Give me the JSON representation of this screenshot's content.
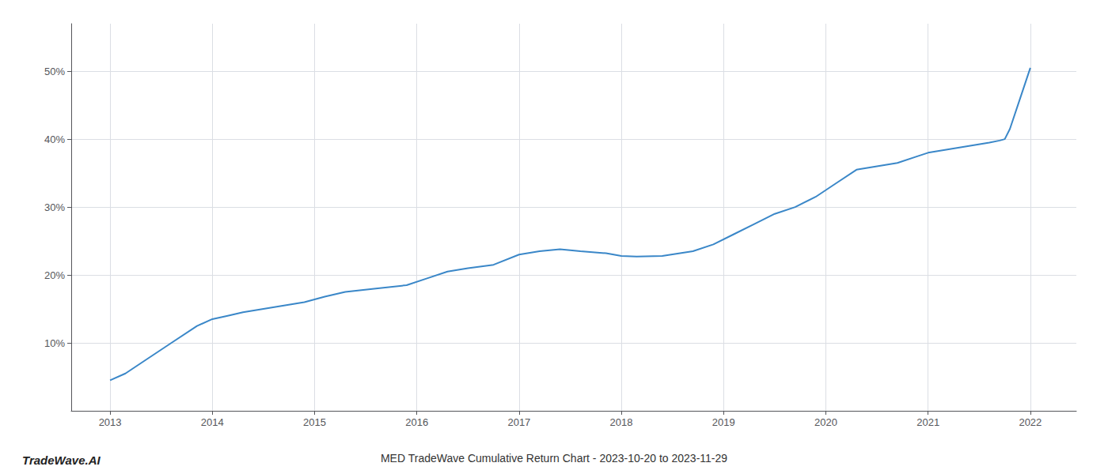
{
  "chart_data": {
    "type": "line",
    "title": "MED TradeWave Cumulative Return Chart - 2023-10-20 to 2023-11-29",
    "annotations": [
      "TradeWave.AI"
    ],
    "x": [
      2013.0,
      2013.15,
      2013.35,
      2013.6,
      2013.85,
      2014.0,
      2014.15,
      2014.3,
      2014.5,
      2014.7,
      2014.9,
      2015.1,
      2015.3,
      2015.6,
      2015.9,
      2016.1,
      2016.3,
      2016.5,
      2016.75,
      2017.0,
      2017.2,
      2017.4,
      2017.6,
      2017.85,
      2018.0,
      2018.15,
      2018.4,
      2018.7,
      2018.9,
      2019.1,
      2019.3,
      2019.5,
      2019.7,
      2019.9,
      2020.1,
      2020.3,
      2020.5,
      2020.7,
      2020.9,
      2021.0,
      2021.2,
      2021.4,
      2021.6,
      2021.7,
      2021.75,
      2021.8,
      2021.9,
      2022.0
    ],
    "values": [
      4.5,
      5.5,
      7.5,
      10.0,
      12.5,
      13.5,
      14.0,
      14.5,
      15.0,
      15.5,
      16.0,
      16.8,
      17.5,
      18.0,
      18.5,
      19.5,
      20.5,
      21.0,
      21.5,
      23.0,
      23.5,
      23.8,
      23.5,
      23.2,
      22.8,
      22.7,
      22.8,
      23.5,
      24.5,
      26.0,
      27.5,
      29.0,
      30.0,
      31.5,
      33.5,
      35.5,
      36.0,
      36.5,
      37.5,
      38.0,
      38.5,
      39.0,
      39.5,
      39.8,
      40.0,
      41.5,
      46.0,
      50.5
    ],
    "color": "#3a87c8",
    "xlim": [
      2012.62,
      2022.45
    ],
    "xticks": [
      2013,
      2014,
      2015,
      2016,
      2017,
      2018,
      2019,
      2020,
      2021,
      2022
    ],
    "ylim": [
      0,
      57
    ],
    "yticks": [
      {
        "value": 10,
        "label": "10%"
      },
      {
        "value": 20,
        "label": "20%"
      },
      {
        "value": 30,
        "label": "30%"
      },
      {
        "value": 40,
        "label": "40%"
      },
      {
        "value": 50,
        "label": "50%"
      }
    ],
    "grid": true
  }
}
